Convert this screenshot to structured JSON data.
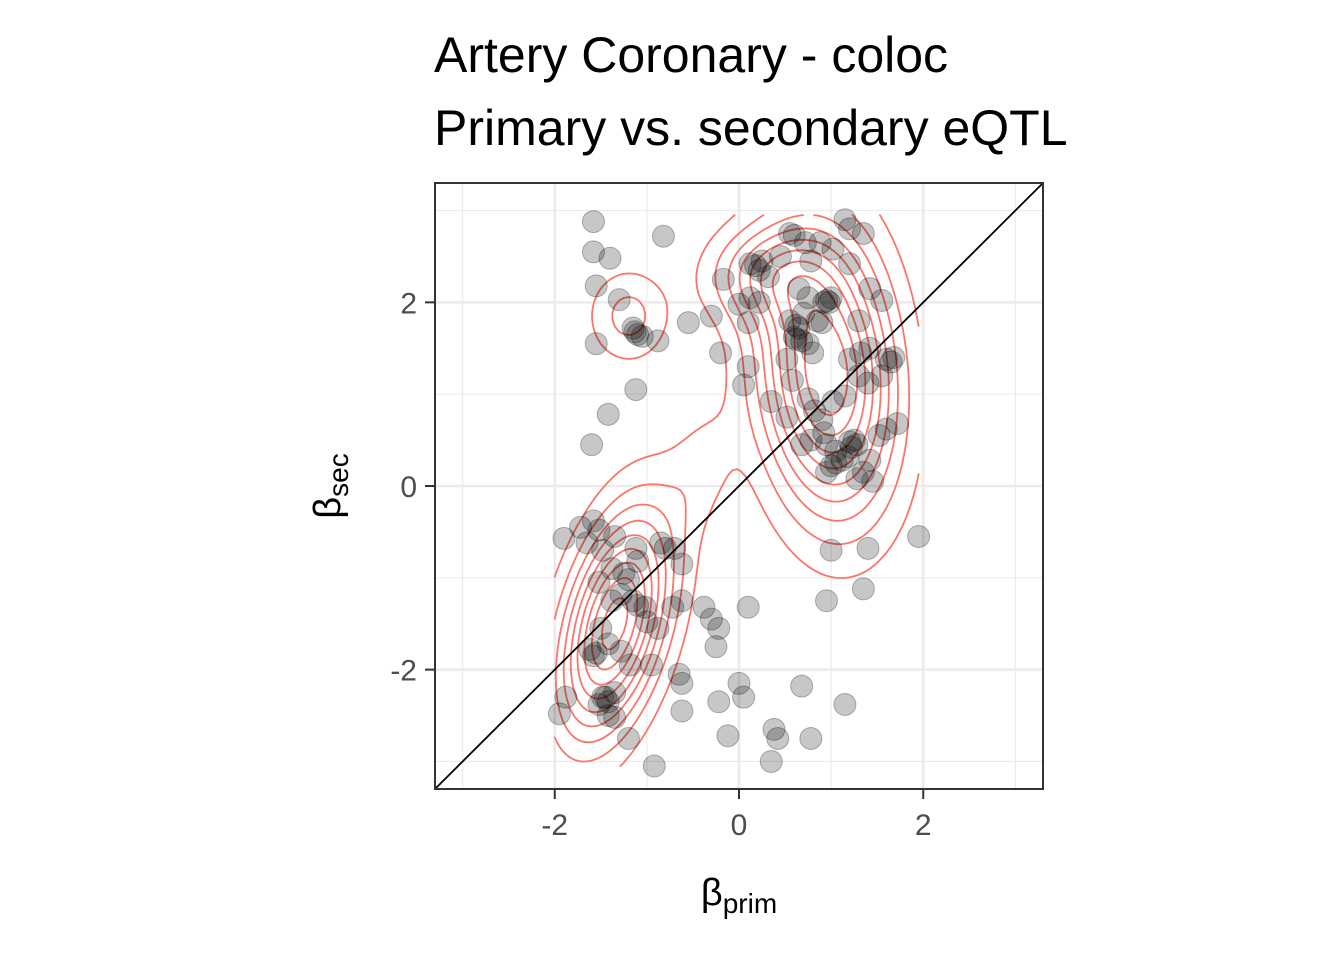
{
  "chart_data": {
    "type": "scatter",
    "title_lines": [
      "Artery Coronary - coloc",
      "Primary vs. secondary eQTL"
    ],
    "xlabel": {
      "base": "β",
      "sub": "prim"
    },
    "ylabel": {
      "base": "β",
      "sub": "sec"
    },
    "xlim": [
      -3.3,
      3.3
    ],
    "ylim": [
      -3.3,
      3.3
    ],
    "x_ticks": [
      -2,
      0,
      2
    ],
    "y_ticks": [
      -2,
      0,
      2
    ],
    "x_tick_labels": [
      "-2",
      "0",
      "2"
    ],
    "y_tick_labels": [
      "-2",
      "0",
      "2"
    ],
    "grid": true,
    "reference_line": {
      "type": "identity",
      "slope": 1,
      "intercept": 0
    },
    "colors": {
      "points": "#000000",
      "point_opacity": 0.22,
      "contours": "#f8766d",
      "reference_line": "#000000",
      "grid": "#ebebeb",
      "panel_border": "#333333"
    },
    "density_contours": {
      "description_free": true,
      "levels": 9,
      "centers": [
        {
          "x": -1.35,
          "y": -1.5,
          "sx": 0.42,
          "sy": 0.85,
          "weight": 1.0,
          "rho": 0.45
        },
        {
          "x": 0.95,
          "y": 1.25,
          "sx": 0.5,
          "sy": 1.05,
          "weight": 1.05,
          "rho": -0.15
        },
        {
          "x": -1.2,
          "y": 1.85,
          "sx": 0.3,
          "sy": 0.35,
          "weight": 0.25,
          "rho": 0.0
        },
        {
          "x": 0.3,
          "y": 2.3,
          "sx": 0.45,
          "sy": 0.35,
          "weight": 0.35,
          "rho": 0.0
        },
        {
          "x": -0.4,
          "y": 0.2,
          "sx": 0.25,
          "sy": 0.45,
          "weight": 0.12,
          "rho": 0.3
        }
      ]
    },
    "points": [
      [
        -1.58,
        2.88
      ],
      [
        -1.58,
        2.55
      ],
      [
        -1.4,
        2.48
      ],
      [
        -1.55,
        2.18
      ],
      [
        -1.3,
        2.03
      ],
      [
        -0.82,
        2.72
      ],
      [
        -1.55,
        1.55
      ],
      [
        -1.15,
        1.72
      ],
      [
        -1.13,
        1.68
      ],
      [
        -1.1,
        1.65
      ],
      [
        -1.05,
        1.63
      ],
      [
        -0.88,
        1.58
      ],
      [
        -0.55,
        1.78
      ],
      [
        -0.3,
        1.85
      ],
      [
        -0.2,
        1.45
      ],
      [
        -1.12,
        1.05
      ],
      [
        -1.42,
        0.78
      ],
      [
        -1.6,
        0.45
      ],
      [
        -0.17,
        2.25
      ],
      [
        0.12,
        2.42
      ],
      [
        0.18,
        2.4
      ],
      [
        0.22,
        2.35
      ],
      [
        0.25,
        2.45
      ],
      [
        0.32,
        2.28
      ],
      [
        0.45,
        2.5
      ],
      [
        0.55,
        2.75
      ],
      [
        0.6,
        2.73
      ],
      [
        0.72,
        2.65
      ],
      [
        0.88,
        2.65
      ],
      [
        1.02,
        2.58
      ],
      [
        1.15,
        2.9
      ],
      [
        1.2,
        2.8
      ],
      [
        1.35,
        2.75
      ],
      [
        1.2,
        2.42
      ],
      [
        0.78,
        2.45
      ],
      [
        0.0,
        1.98
      ],
      [
        0.12,
        2.05
      ],
      [
        0.22,
        2.0
      ],
      [
        0.1,
        1.78
      ],
      [
        0.65,
        2.15
      ],
      [
        0.75,
        2.05
      ],
      [
        0.92,
        2.0
      ],
      [
        0.95,
        2.02
      ],
      [
        1.0,
        2.05
      ],
      [
        0.98,
        2.0
      ],
      [
        1.42,
        2.15
      ],
      [
        1.55,
        2.02
      ],
      [
        1.3,
        1.8
      ],
      [
        0.55,
        1.8
      ],
      [
        0.62,
        1.75
      ],
      [
        0.65,
        1.72
      ],
      [
        0.85,
        1.8
      ],
      [
        0.7,
        1.88
      ],
      [
        0.9,
        1.78
      ],
      [
        0.6,
        1.62
      ],
      [
        0.62,
        1.6
      ],
      [
        0.68,
        1.58
      ],
      [
        0.75,
        1.55
      ],
      [
        0.8,
        1.45
      ],
      [
        0.52,
        1.38
      ],
      [
        1.2,
        1.38
      ],
      [
        1.32,
        1.45
      ],
      [
        1.42,
        1.5
      ],
      [
        1.6,
        1.38
      ],
      [
        1.65,
        1.35
      ],
      [
        1.68,
        1.4
      ],
      [
        1.55,
        1.2
      ],
      [
        1.4,
        1.12
      ],
      [
        0.1,
        1.3
      ],
      [
        0.05,
        1.1
      ],
      [
        0.58,
        1.15
      ],
      [
        1.3,
        1.2
      ],
      [
        0.35,
        0.92
      ],
      [
        0.52,
        0.75
      ],
      [
        0.75,
        0.95
      ],
      [
        0.82,
        0.82
      ],
      [
        0.9,
        0.72
      ],
      [
        1.02,
        0.92
      ],
      [
        1.15,
        0.98
      ],
      [
        0.92,
        0.58
      ],
      [
        0.78,
        0.5
      ],
      [
        0.68,
        0.45
      ],
      [
        0.95,
        0.45
      ],
      [
        1.05,
        0.38
      ],
      [
        1.18,
        0.32
      ],
      [
        1.2,
        0.48
      ],
      [
        1.25,
        0.5
      ],
      [
        1.22,
        0.42
      ],
      [
        1.28,
        0.45
      ],
      [
        1.52,
        0.55
      ],
      [
        1.6,
        0.62
      ],
      [
        1.72,
        0.68
      ],
      [
        1.05,
        0.25
      ],
      [
        1.12,
        0.28
      ],
      [
        1.0,
        0.22
      ],
      [
        1.42,
        0.28
      ],
      [
        1.35,
        0.15
      ],
      [
        1.28,
        0.08
      ],
      [
        0.95,
        0.15
      ],
      [
        1.45,
        0.05
      ],
      [
        1.95,
        -0.55
      ],
      [
        1.4,
        -0.68
      ],
      [
        1.0,
        -0.7
      ],
      [
        0.95,
        -1.25
      ],
      [
        1.35,
        -1.12
      ],
      [
        -1.58,
        -0.38
      ],
      [
        -1.72,
        -0.45
      ],
      [
        -1.65,
        -0.62
      ],
      [
        -1.9,
        -0.57
      ],
      [
        -1.52,
        -0.48
      ],
      [
        -1.35,
        -0.55
      ],
      [
        -1.12,
        -0.68
      ],
      [
        -0.85,
        -0.62
      ],
      [
        -0.7,
        -0.68
      ],
      [
        -0.62,
        -0.85
      ],
      [
        -1.48,
        -0.7
      ],
      [
        -1.38,
        -0.9
      ],
      [
        -1.1,
        -0.82
      ],
      [
        -1.25,
        -0.95
      ],
      [
        -1.2,
        -1.02
      ],
      [
        -1.28,
        -1.18
      ],
      [
        -1.15,
        -1.25
      ],
      [
        -1.1,
        -1.3
      ],
      [
        -1.38,
        -1.25
      ],
      [
        -1.52,
        -1.05
      ],
      [
        -1.5,
        -1.55
      ],
      [
        -1.62,
        -1.78
      ],
      [
        -1.55,
        -1.82
      ],
      [
        -1.58,
        -1.85
      ],
      [
        -1.42,
        -1.72
      ],
      [
        -1.0,
        -1.48
      ],
      [
        -1.02,
        -1.32
      ],
      [
        -0.88,
        -1.55
      ],
      [
        -0.72,
        -1.32
      ],
      [
        -0.62,
        -1.25
      ],
      [
        -0.38,
        -1.32
      ],
      [
        -0.3,
        -1.45
      ],
      [
        -0.22,
        -1.55
      ],
      [
        -0.25,
        -1.75
      ],
      [
        -1.28,
        -1.8
      ],
      [
        -1.18,
        -1.95
      ],
      [
        -0.95,
        -1.95
      ],
      [
        -0.65,
        -2.05
      ],
      [
        -0.62,
        -2.15
      ],
      [
        -1.35,
        -2.25
      ],
      [
        -1.45,
        -2.3
      ],
      [
        -1.42,
        -2.35
      ],
      [
        -1.52,
        -2.38
      ],
      [
        -1.48,
        -2.3
      ],
      [
        -1.88,
        -2.3
      ],
      [
        -1.95,
        -2.48
      ],
      [
        -1.42,
        -2.5
      ],
      [
        -1.35,
        -2.52
      ],
      [
        -1.2,
        -2.75
      ],
      [
        -0.62,
        -2.45
      ],
      [
        -0.22,
        -2.35
      ],
      [
        0.0,
        -2.15
      ],
      [
        0.05,
        -2.3
      ],
      [
        -0.12,
        -2.72
      ],
      [
        0.38,
        -2.65
      ],
      [
        0.42,
        -2.75
      ],
      [
        0.68,
        -2.18
      ],
      [
        0.78,
        -2.75
      ],
      [
        1.15,
        -2.38
      ],
      [
        0.35,
        -3.0
      ],
      [
        -0.92,
        -3.05
      ],
      [
        0.1,
        -1.32
      ],
      [
        -0.8,
        -0.68
      ]
    ]
  }
}
